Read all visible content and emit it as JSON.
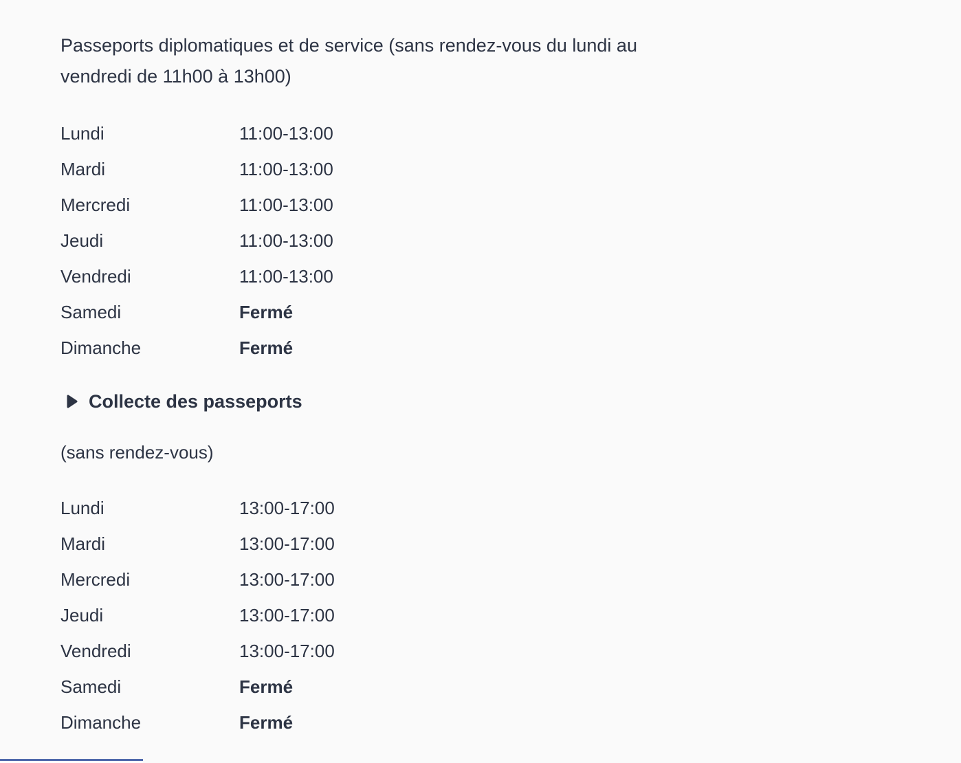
{
  "page": {
    "background": "#fafafa",
    "text_color": "#2d3444",
    "accent_blue": "#4e68ab"
  },
  "section": {
    "title_lines": [
      "Passeports diplomatiques et de service (sans rendez-vous du lundi au",
      "vendredi de 11h00 à 13h00)"
    ],
    "accordion": {
      "label": "Collecte des passeports",
      "icon": "triangle-right-icon"
    },
    "subnote": "(sans rendez-vous)",
    "schedules": [
      {
        "name": "passeports-diplomatiques-horaires",
        "rows": [
          {
            "day": "Lundi",
            "hours": "11:00-13:00",
            "closed": false
          },
          {
            "day": "Mardi",
            "hours": "11:00-13:00",
            "closed": false
          },
          {
            "day": "Mercredi",
            "hours": "11:00-13:00",
            "closed": false
          },
          {
            "day": "Jeudi",
            "hours": "11:00-13:00",
            "closed": false
          },
          {
            "day": "Vendredi",
            "hours": "11:00-13:00",
            "closed": false
          },
          {
            "day": "Samedi",
            "hours": "Fermé",
            "closed": true
          },
          {
            "day": "Dimanche",
            "hours": "Fermé",
            "closed": true
          }
        ]
      },
      {
        "name": "collecte-passeports-horaires",
        "rows": [
          {
            "day": "Lundi",
            "hours": "13:00-17:00",
            "closed": false
          },
          {
            "day": "Mardi",
            "hours": "13:00-17:00",
            "closed": false
          },
          {
            "day": "Mercredi",
            "hours": "13:00-17:00",
            "closed": false
          },
          {
            "day": "Jeudi",
            "hours": "13:00-17:00",
            "closed": false
          },
          {
            "day": "Vendredi",
            "hours": "13:00-17:00",
            "closed": false
          },
          {
            "day": "Samedi",
            "hours": "Fermé",
            "closed": true
          },
          {
            "day": "Dimanche",
            "hours": "Fermé",
            "closed": true
          }
        ]
      }
    ]
  }
}
